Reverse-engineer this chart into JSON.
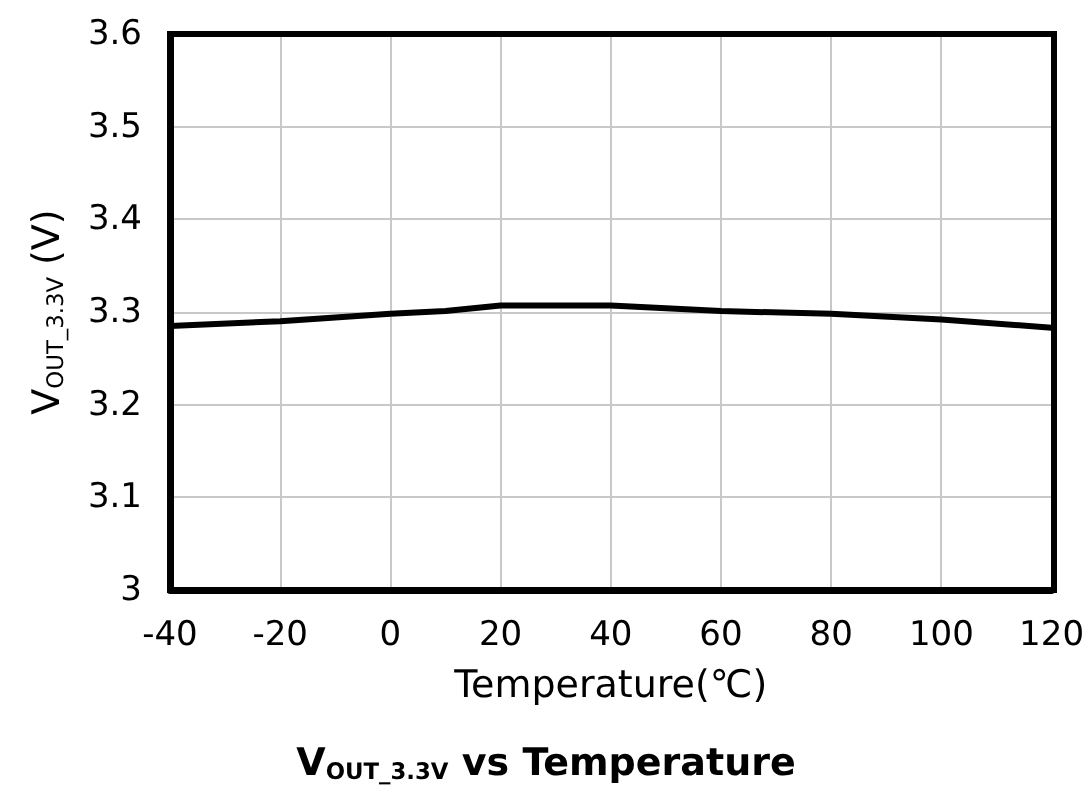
{
  "chart_data": {
    "type": "line",
    "title": "V$_{OUT_3.3V}$ vs Temperature",
    "xlabel": "Temperature(℃)",
    "ylabel": "V$_{OUT_3.3V}$ (V)",
    "x": [
      -40,
      -20,
      0,
      10,
      20,
      40,
      60,
      80,
      100,
      120
    ],
    "series": [
      {
        "color": "#000000",
        "values": [
          3.285,
          3.29,
          3.298,
          3.301,
          3.307,
          3.307,
          3.301,
          3.298,
          3.292,
          3.283
        ]
      }
    ],
    "xlim": [
      -40,
      120
    ],
    "xticks": [
      -40,
      -20,
      0,
      20,
      40,
      60,
      80,
      100,
      120
    ],
    "ylim": [
      3,
      3.6
    ],
    "yticks": [
      3,
      3.1,
      3.2,
      3.3,
      3.4,
      3.5,
      3.6
    ],
    "grid": true,
    "marker": "none",
    "line_style": "solid"
  }
}
